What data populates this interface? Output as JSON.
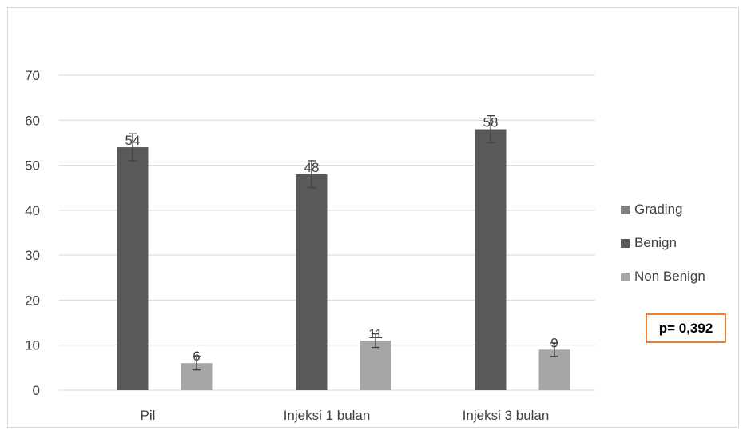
{
  "chart_data": {
    "type": "bar",
    "categories": [
      "Pil",
      "Injeksi 1 bulan",
      "Injeksi 3 bulan"
    ],
    "series": [
      {
        "name": "Grading",
        "values": [
          null,
          null,
          null
        ],
        "color": "#7f7f7f"
      },
      {
        "name": "Benign",
        "values": [
          54,
          48,
          58
        ],
        "color": "#595959",
        "error": [
          3,
          3,
          3
        ]
      },
      {
        "name": "Non Benign",
        "values": [
          6,
          11,
          9
        ],
        "color": "#a6a6a6",
        "error": [
          1.5,
          1.5,
          1.5
        ]
      }
    ],
    "ylim": [
      0,
      70
    ],
    "yticks": [
      "0",
      "10",
      "20",
      "30",
      "40",
      "50",
      "60",
      "70"
    ],
    "grid": true,
    "legend_position": "right",
    "annotation": "p= 0,392"
  }
}
